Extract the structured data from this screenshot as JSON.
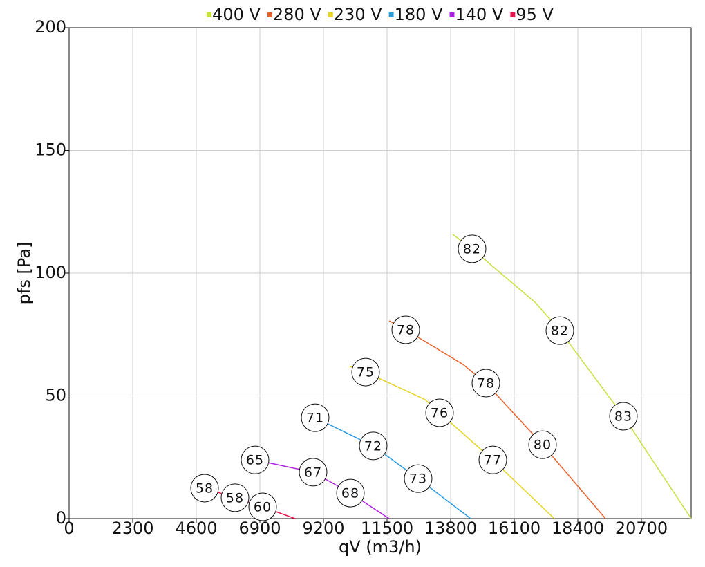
{
  "chart_data": {
    "type": "line",
    "x_label": "qV (m3/h)",
    "y_label": "pfs [Pa]",
    "xlim": [
      0,
      22500
    ],
    "ylim": [
      0,
      200
    ],
    "xticks": [
      0,
      2300,
      4600,
      6900,
      9200,
      11500,
      13800,
      16100,
      18400,
      20700
    ],
    "yticks": [
      0,
      50,
      100,
      150,
      200
    ],
    "grid": true,
    "legend": "top",
    "series": [
      {
        "name": "400 V",
        "color": "#c8e03c",
        "x": [
          13875,
          14575,
          16875,
          17750,
          20050,
          22500
        ],
        "values": [
          115.8,
          109.9,
          87.9,
          76.6,
          41.7,
          0
        ],
        "point_labels": [
          null,
          82,
          null,
          82,
          83,
          null
        ]
      },
      {
        "name": "280 V",
        "color": "#e8622c",
        "x": [
          11575,
          12175,
          14250,
          15075,
          17125,
          19400
        ],
        "values": [
          80.6,
          76.9,
          62.8,
          55.2,
          30.1,
          0
        ],
        "point_labels": [
          null,
          78,
          null,
          78,
          80,
          null
        ]
      },
      {
        "name": "230 V",
        "color": "#e6d31e",
        "x": [
          10150,
          10725,
          12875,
          13400,
          15325,
          17550
        ],
        "values": [
          62.0,
          59.7,
          48.5,
          43.1,
          23.9,
          0
        ],
        "point_labels": [
          null,
          75,
          null,
          76,
          77,
          null
        ]
      },
      {
        "name": "180 V",
        "color": "#2b9be0",
        "x": [
          8900,
          11000,
          12625,
          14525
        ],
        "values": [
          41.1,
          29.6,
          16.3,
          0
        ],
        "point_labels": [
          71,
          72,
          73,
          null
        ]
      },
      {
        "name": "140 V",
        "color": "#b020e0",
        "x": [
          6725,
          8825,
          10175,
          11575
        ],
        "values": [
          23.9,
          18.9,
          10.4,
          0
        ],
        "point_labels": [
          65,
          67,
          68,
          null
        ]
      },
      {
        "name": "95 V",
        "color": "#e8144e",
        "x": [
          4900,
          6000,
          7000,
          8175
        ],
        "values": [
          12.4,
          8.5,
          4.8,
          0
        ],
        "point_labels": [
          58,
          58,
          60,
          null
        ]
      }
    ]
  }
}
